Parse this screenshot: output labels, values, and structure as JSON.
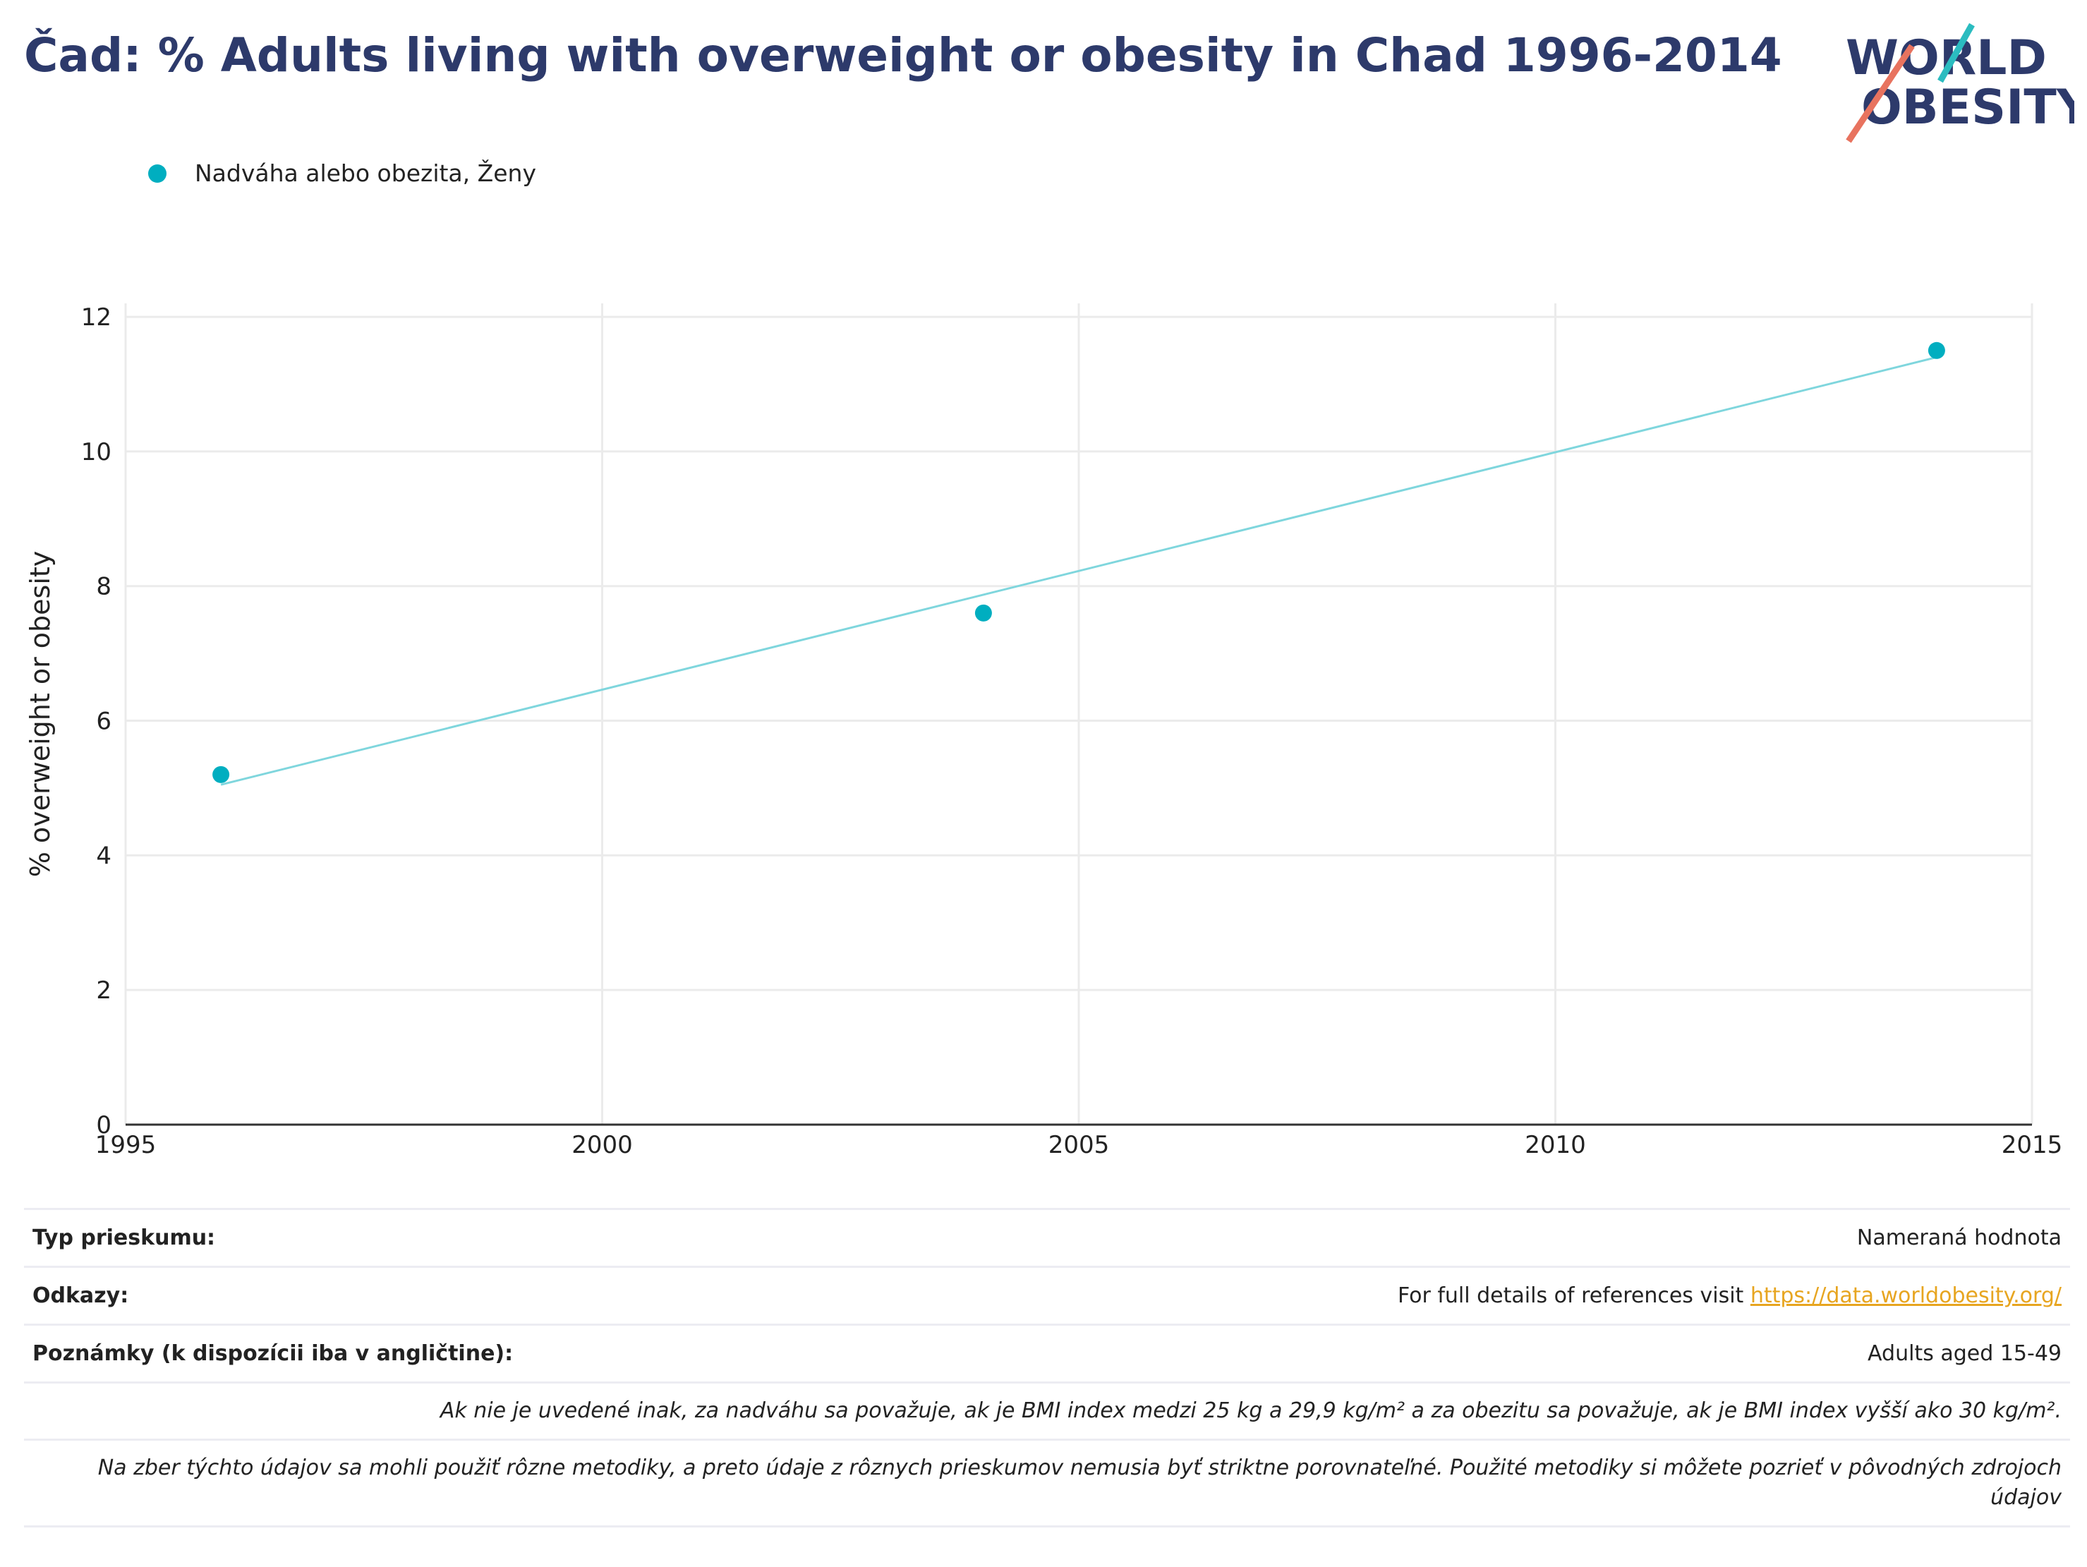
{
  "title": "Čad: % Adults living with overweight or obesity in Chad 1996-2014",
  "logo": {
    "line1": "WORLD",
    "line2": "OBESITY"
  },
  "legend": [
    {
      "label": "Nadváha alebo obezita, Ženy",
      "color": "#00aec0"
    }
  ],
  "chart_data": {
    "type": "scatter",
    "title": "Čad: % Adults living with overweight or obesity in Chad 1996-2014",
    "ylabel": "% overweight or obesity",
    "xlabel": "",
    "xlim": [
      1995,
      2015
    ],
    "ylim": [
      0,
      12.2
    ],
    "xticks": [
      "1995",
      "2000",
      "2005",
      "2010",
      "2015"
    ],
    "yticks": [
      "0",
      "2",
      "4",
      "6",
      "8",
      "10",
      "12"
    ],
    "grid": true,
    "series": [
      {
        "name": "Nadváha alebo obezita, Ženy",
        "color": "#00aec0",
        "x": [
          1996,
          2004,
          2014
        ],
        "y": [
          5.2,
          7.6,
          11.5
        ]
      }
    ],
    "trendline": {
      "color": "#7fd6dd",
      "x": [
        1996,
        2014
      ],
      "y": [
        5.05,
        11.4
      ]
    }
  },
  "footer": {
    "survey_type_label": "Typ prieskumu:",
    "survey_type_value": "Nameraná hodnota",
    "references_label": "Odkazy:",
    "references_text": "For full details of references visit ",
    "references_link": "https://data.worldobesity.org/",
    "notes_label": "Poznámky (k dispozícii iba v angličtine):",
    "notes_value": "Adults aged 15-49",
    "note1": "Ak nie je uvedené inak, za nadváhu sa považuje, ak je BMI index medzi 25 kg a 29,9 kg/m² a za obezitu sa považuje, ak je BMI index vyšší ako 30 kg/m².",
    "note2": "Na zber týchto údajov sa mohli použiť rôzne metodiky, a preto údaje z rôznych prieskumov nemusia byť striktne porovnateľné. Použité metodiky si môžete pozrieť v pôvodných zdrojoch údajov"
  }
}
